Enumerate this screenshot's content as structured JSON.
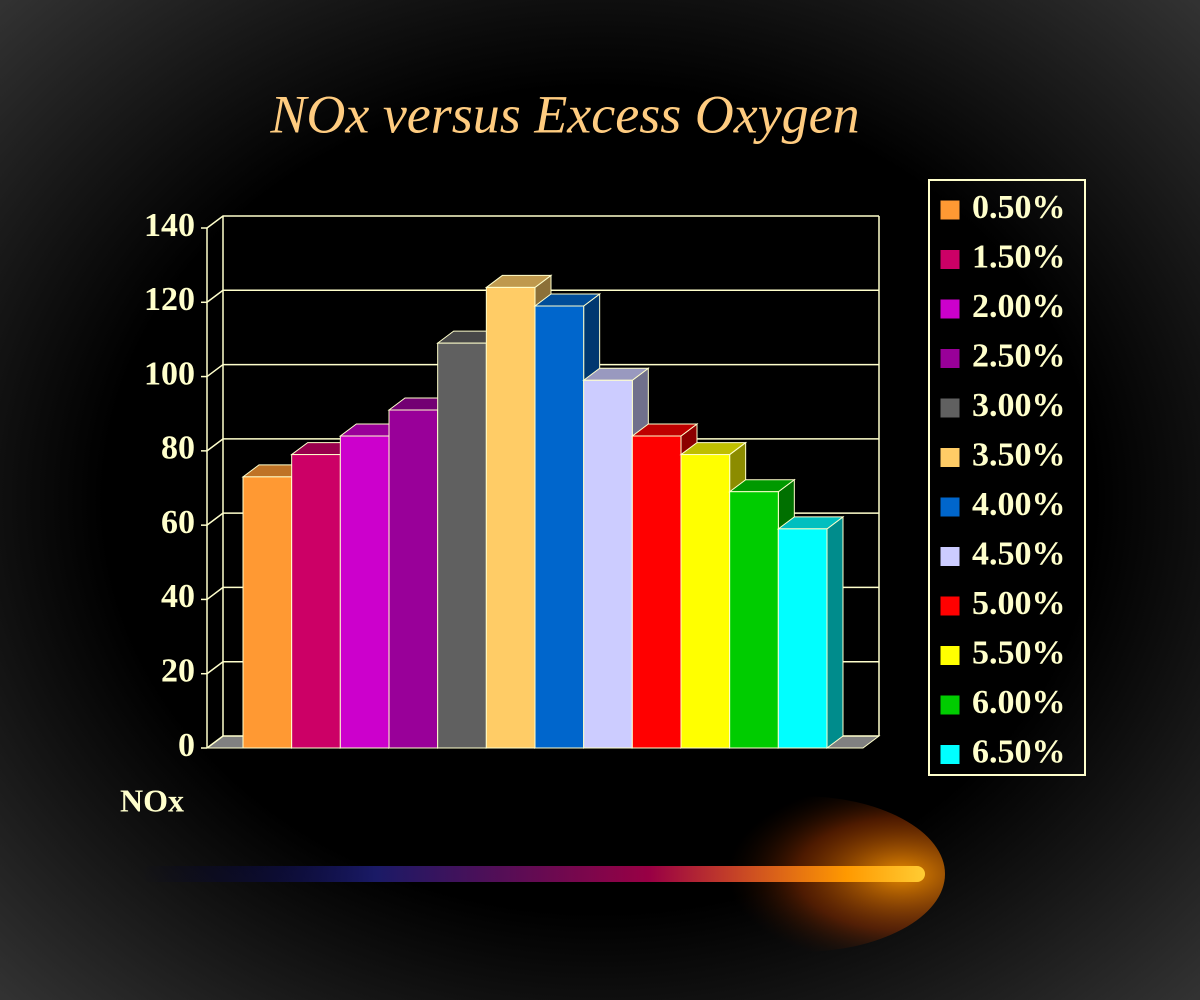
{
  "chart_data": {
    "type": "bar3d",
    "title": "NOx versus Excess Oxygen",
    "categories": [
      "NOx"
    ],
    "series": [
      {
        "name": "0.50%",
        "color": "#ff9933",
        "values": [
          73
        ]
      },
      {
        "name": "1.50%",
        "color": "#cc0066",
        "values": [
          79
        ]
      },
      {
        "name": "2.00%",
        "color": "#cc00cc",
        "values": [
          84
        ]
      },
      {
        "name": "2.50%",
        "color": "#990099",
        "values": [
          91
        ]
      },
      {
        "name": "3.00%",
        "color": "#606060",
        "values": [
          109
        ]
      },
      {
        "name": "3.50%",
        "color": "#ffcc66",
        "values": [
          124
        ]
      },
      {
        "name": "4.00%",
        "color": "#0066cc",
        "values": [
          119
        ]
      },
      {
        "name": "4.50%",
        "color": "#ccccff",
        "values": [
          99
        ]
      },
      {
        "name": "5.00%",
        "color": "#ff0000",
        "values": [
          84
        ]
      },
      {
        "name": "5.50%",
        "color": "#ffff00",
        "values": [
          79
        ]
      },
      {
        "name": "6.00%",
        "color": "#00cc00",
        "values": [
          69
        ]
      },
      {
        "name": "6.50%",
        "color": "#00ffff",
        "values": [
          59
        ]
      }
    ],
    "ylim": [
      0,
      140
    ],
    "yticks": [
      0,
      20,
      40,
      60,
      80,
      100,
      120,
      140
    ],
    "grid": true,
    "legend": "right"
  }
}
